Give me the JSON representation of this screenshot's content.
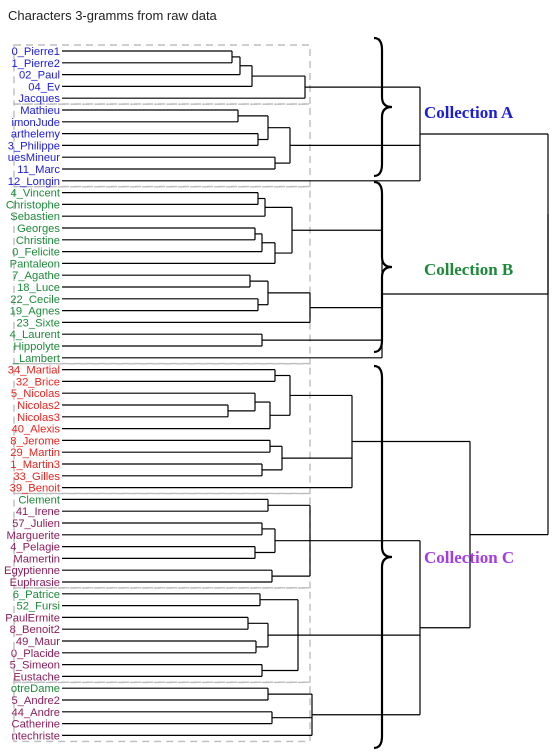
{
  "chart_data": {
    "type": "dendrogram",
    "title": "Characters 3-gramms from raw data",
    "colors": {
      "A": "#1c1cd9",
      "B": "#1d8a3a",
      "C_red": "#e8241f",
      "C_maroon": "#8b1e5a",
      "C_label": "#a63ce6"
    },
    "leaves": [
      {
        "label": "0_Pierre1",
        "group": "A"
      },
      {
        "label": "1_Pierre2",
        "group": "A"
      },
      {
        "label": "02_Paul",
        "group": "A"
      },
      {
        "label": "04_Ev",
        "group": "A"
      },
      {
        "label": "Jacques",
        "group": "A"
      },
      {
        "label": "Mathieu",
        "group": "A"
      },
      {
        "label": "imonJude",
        "group": "A"
      },
      {
        "label": "arthelemy",
        "group": "A"
      },
      {
        "label": "3_Philippe",
        "group": "A"
      },
      {
        "label": "uesMineur",
        "group": "A"
      },
      {
        "label": "11_Marc",
        "group": "A"
      },
      {
        "label": "12_Longin",
        "group": "A"
      },
      {
        "label": "4_Vincent",
        "group": "B"
      },
      {
        "label": "Christophe",
        "group": "B"
      },
      {
        "label": "Sebastien",
        "group": "B"
      },
      {
        "label": "Georges",
        "group": "B"
      },
      {
        "label": "Christine",
        "group": "B"
      },
      {
        "label": "0_Felicite",
        "group": "B"
      },
      {
        "label": "Pantaleon",
        "group": "B"
      },
      {
        "label": "7_Agathe",
        "group": "B"
      },
      {
        "label": "18_Luce",
        "group": "B"
      },
      {
        "label": "22_Cecile",
        "group": "B"
      },
      {
        "label": "19_Agnes",
        "group": "B"
      },
      {
        "label": "23_Sixte",
        "group": "B"
      },
      {
        "label": "4_Laurent",
        "group": "B"
      },
      {
        "label": "Hippolyte",
        "group": "B"
      },
      {
        "label": "_Lambert",
        "group": "B"
      },
      {
        "label": "34_Martial",
        "group": "C_red"
      },
      {
        "label": "32_Brice",
        "group": "C_red"
      },
      {
        "label": "5_Nicolas",
        "group": "C_red"
      },
      {
        "label": "Nicolas2",
        "group": "C_red"
      },
      {
        "label": "Nicolas3",
        "group": "C_red"
      },
      {
        "label": "40_Alexis",
        "group": "C_red"
      },
      {
        "label": "8_Jerome",
        "group": "C_red"
      },
      {
        "label": "29_Martin",
        "group": "C_red"
      },
      {
        "label": "1_Martin3",
        "group": "C_red"
      },
      {
        "label": "33_Gilles",
        "group": "C_red"
      },
      {
        "label": "39_Benoit",
        "group": "C_red"
      },
      {
        "label": "Clement",
        "group": "B"
      },
      {
        "label": "41_Irene",
        "group": "C_maroon"
      },
      {
        "label": "57_Julien",
        "group": "C_maroon"
      },
      {
        "label": "Marguerite",
        "group": "C_maroon"
      },
      {
        "label": "4_Pelagie",
        "group": "C_maroon"
      },
      {
        "label": "Mamertin",
        "group": "C_maroon"
      },
      {
        "label": "Egyptienne",
        "group": "C_maroon"
      },
      {
        "label": "Euphrasie",
        "group": "C_maroon"
      },
      {
        "label": "6_Patrice",
        "group": "B"
      },
      {
        "label": "52_Fursi",
        "group": "B"
      },
      {
        "label": "PaulErmite",
        "group": "C_maroon"
      },
      {
        "label": "8_Benoit2",
        "group": "C_maroon"
      },
      {
        "label": "49_Maur",
        "group": "C_maroon"
      },
      {
        "label": "0_Placide",
        "group": "C_maroon"
      },
      {
        "label": "5_Simeon",
        "group": "C_maroon"
      },
      {
        "label": "Eustache",
        "group": "C_maroon"
      },
      {
        "label": "otreDame",
        "group": "B"
      },
      {
        "label": "5_Andre2",
        "group": "C_maroon"
      },
      {
        "label": "44_Andre",
        "group": "C_maroon"
      },
      {
        "label": "Catherine",
        "group": "C_maroon"
      },
      {
        "label": "ntechriste",
        "group": "C_maroon"
      }
    ],
    "collections": [
      {
        "label": "Collection A",
        "color": "#1c1cd9"
      },
      {
        "label": "Collection B",
        "color": "#1d8a3a"
      },
      {
        "label": "Collection C",
        "color": "#a63ce6"
      }
    ]
  }
}
